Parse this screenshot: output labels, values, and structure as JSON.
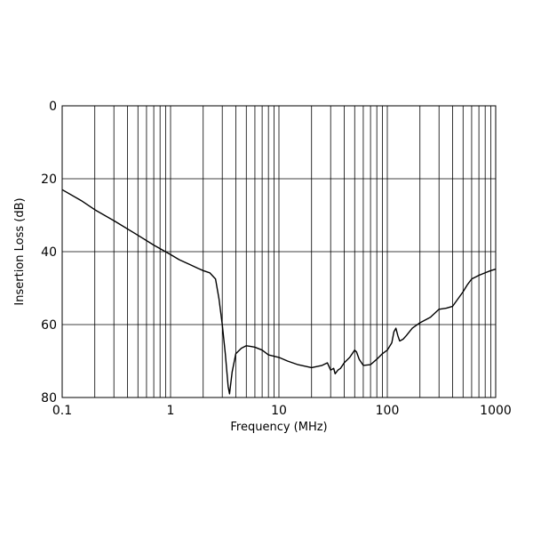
{
  "chart_data": {
    "type": "line",
    "title": "",
    "xlabel": "Frequency (MHz)",
    "ylabel": "Insertion Loss (dB)",
    "x_scale": "log",
    "xlim": [
      0.1,
      1000
    ],
    "ylim": [
      0,
      80
    ],
    "y_inverted": true,
    "grid": true,
    "x_tick_labels": [
      "0.1",
      "1",
      "10",
      "100",
      "1000"
    ],
    "x_tick_values": [
      0.1,
      1,
      10,
      100,
      1000
    ],
    "y_tick_labels": [
      "0",
      "20",
      "40",
      "60",
      "80"
    ],
    "y_tick_values": [
      0,
      20,
      40,
      60,
      80
    ],
    "line_color": "#000000",
    "grid_color": "#000000",
    "series": [
      {
        "x": [
          0.1,
          0.15,
          0.2,
          0.3,
          0.5,
          0.7,
          1.0,
          1.2,
          1.5,
          1.8,
          2.0,
          2.3,
          2.6,
          2.8,
          3.0,
          3.2,
          3.4,
          3.5,
          3.7,
          4.0,
          4.5,
          5.0,
          5.5,
          6.0,
          7.0,
          8.0,
          10,
          12,
          15,
          20,
          25,
          28,
          30,
          32,
          33,
          35,
          37,
          40,
          45,
          50,
          52,
          55,
          60,
          70,
          80,
          90,
          100,
          110,
          115,
          120,
          125,
          130,
          140,
          150,
          170,
          200,
          250,
          300,
          350,
          400,
          500,
          550,
          600,
          700,
          800,
          900,
          1000
        ],
        "y": [
          23,
          26,
          28.5,
          31.5,
          35.5,
          38.2,
          40.8,
          42.2,
          43.5,
          44.6,
          45.2,
          45.8,
          47.5,
          53,
          60,
          68,
          77,
          79,
          73,
          68,
          66.5,
          65.8,
          66,
          66.2,
          67,
          68.3,
          69,
          70,
          71,
          71.8,
          71.2,
          70.5,
          72.5,
          72,
          73.5,
          72.5,
          72,
          70.5,
          69,
          67,
          67.5,
          69.5,
          71.2,
          71,
          69.5,
          68,
          67,
          65,
          62,
          61,
          63,
          64.5,
          64,
          63,
          61,
          59.5,
          58,
          55.8,
          55.5,
          55,
          51,
          49,
          47.5,
          46.5,
          45.8,
          45.2,
          44.8
        ]
      }
    ]
  }
}
